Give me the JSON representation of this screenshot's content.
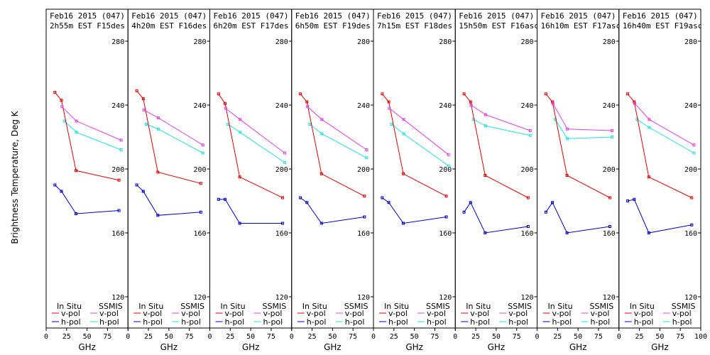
{
  "chart_data": {
    "type": "line",
    "ylabel": "Brightness Temperature, Deg K",
    "xlabel": "GHz",
    "xlim": [
      0,
      100
    ],
    "ylim": [
      110,
      290
    ],
    "yticks": [
      120,
      160,
      200,
      240,
      280
    ],
    "xticks": [
      0,
      25,
      50,
      75
    ],
    "last_panel_xticks": [
      0,
      25,
      50,
      75,
      100
    ],
    "legend": {
      "in_situ_label": "In Situ",
      "ssmis_label": "SSMIS",
      "vpol": "v-pol",
      "hpol": "h-pol"
    },
    "colors": {
      "insitu_v": "#e00000",
      "insitu_h": "#0000c8",
      "ssmis_v": "#e040e0",
      "ssmis_h": "#20e0e0"
    },
    "panels": [
      {
        "date": "Feb16 2015 (047)",
        "time": "2h55m EST F15des",
        "insitu_v": {
          "x": [
            10.7,
            18.7,
            36.5,
            89
          ],
          "y": [
            248,
            243,
            199,
            193
          ]
        },
        "insitu_h": {
          "x": [
            10.7,
            18.7,
            36.5,
            89
          ],
          "y": [
            190,
            186,
            172,
            174
          ]
        },
        "ssmis_v": {
          "x": [
            19.35,
            37,
            91.65
          ],
          "y": [
            239,
            230,
            218
          ]
        },
        "ssmis_h": {
          "x": [
            22.235,
            37,
            91.65
          ],
          "y": [
            230,
            223,
            212
          ]
        }
      },
      {
        "date": "Feb16 2015 (047)",
        "time": "4h20m EST F16des",
        "insitu_v": {
          "x": [
            10.7,
            18.7,
            36.5,
            89
          ],
          "y": [
            249,
            244,
            198,
            191
          ]
        },
        "insitu_h": {
          "x": [
            10.7,
            18.7,
            36.5,
            89
          ],
          "y": [
            190,
            186,
            171,
            173
          ]
        },
        "ssmis_v": {
          "x": [
            19.35,
            37,
            91.65
          ],
          "y": [
            237,
            232,
            215
          ]
        },
        "ssmis_h": {
          "x": [
            22.235,
            37,
            91.65
          ],
          "y": [
            228,
            225,
            210
          ]
        }
      },
      {
        "date": "Feb16 2015 (047)",
        "time": "6h20m EST F17des",
        "insitu_v": {
          "x": [
            10.7,
            18.7,
            36.5,
            89
          ],
          "y": [
            247,
            241,
            195,
            182
          ]
        },
        "insitu_h": {
          "x": [
            10.7,
            18.7,
            36.5,
            89
          ],
          "y": [
            181,
            181,
            166,
            166
          ]
        },
        "ssmis_v": {
          "x": [
            19.35,
            37,
            91.65
          ],
          "y": [
            238,
            231,
            210
          ]
        },
        "ssmis_h": {
          "x": [
            22.235,
            37,
            91.65
          ],
          "y": [
            228,
            223,
            204
          ]
        }
      },
      {
        "date": "Feb16 2015 (047)",
        "time": "6h50m EST F19des",
        "insitu_v": {
          "x": [
            10.7,
            18.7,
            36.5,
            89
          ],
          "y": [
            247,
            242,
            197,
            183
          ]
        },
        "insitu_h": {
          "x": [
            10.7,
            18.7,
            36.5,
            89
          ],
          "y": [
            182,
            179,
            166,
            170
          ]
        },
        "ssmis_v": {
          "x": [
            19.35,
            37,
            91.65
          ],
          "y": [
            239,
            231,
            212
          ]
        },
        "ssmis_h": {
          "x": [
            22.235,
            37,
            91.65
          ],
          "y": [
            228,
            222,
            207
          ]
        }
      },
      {
        "date": "Feb16 2015 (047)",
        "time": "7h15m EST F18des",
        "insitu_v": {
          "x": [
            10.7,
            18.7,
            36.5,
            89
          ],
          "y": [
            247,
            242,
            197,
            183
          ]
        },
        "insitu_h": {
          "x": [
            10.7,
            18.7,
            36.5,
            89
          ],
          "y": [
            182,
            179,
            166,
            170
          ]
        },
        "ssmis_v": {
          "x": [
            19.35,
            37,
            91.65
          ],
          "y": [
            238,
            231,
            209
          ]
        },
        "ssmis_h": {
          "x": [
            22.235,
            37,
            91.65
          ],
          "y": [
            228,
            222,
            202
          ]
        }
      },
      {
        "date": "Feb16 2015 (047)",
        "time": "15h50m EST F16asc",
        "insitu_v": {
          "x": [
            10.7,
            18.7,
            36.5,
            89
          ],
          "y": [
            247,
            242,
            196,
            182
          ]
        },
        "insitu_h": {
          "x": [
            10.7,
            18.7,
            36.5,
            89
          ],
          "y": [
            173,
            179,
            160,
            164
          ]
        },
        "ssmis_v": {
          "x": [
            19.35,
            37,
            91.65
          ],
          "y": [
            240,
            234,
            224
          ]
        },
        "ssmis_h": {
          "x": [
            22.235,
            37,
            91.65
          ],
          "y": [
            231,
            227,
            221
          ]
        }
      },
      {
        "date": "Feb16 2015 (047)",
        "time": "16h10m EST F17asc",
        "insitu_v": {
          "x": [
            10.7,
            18.7,
            36.5,
            89
          ],
          "y": [
            247,
            242,
            196,
            182
          ]
        },
        "insitu_h": {
          "x": [
            10.7,
            18.7,
            36.5,
            89
          ],
          "y": [
            173,
            179,
            160,
            164
          ]
        },
        "ssmis_v": {
          "x": [
            19.35,
            37,
            91.65
          ],
          "y": [
            241,
            225,
            224
          ]
        },
        "ssmis_h": {
          "x": [
            22.235,
            37,
            91.65
          ],
          "y": [
            231,
            219,
            220
          ]
        }
      },
      {
        "date": "Feb16 2015 (047)",
        "time": "16h40m EST F19asc",
        "insitu_v": {
          "x": [
            10.7,
            18.7,
            36.5,
            89
          ],
          "y": [
            247,
            242,
            195,
            182
          ]
        },
        "insitu_h": {
          "x": [
            10.7,
            18.7,
            36.5,
            89
          ],
          "y": [
            180,
            181,
            160,
            165
          ]
        },
        "ssmis_v": {
          "x": [
            19.35,
            37,
            91.65
          ],
          "y": [
            241,
            231,
            215
          ]
        },
        "ssmis_h": {
          "x": [
            22.235,
            37,
            91.65
          ],
          "y": [
            231,
            226,
            210
          ]
        }
      }
    ]
  }
}
